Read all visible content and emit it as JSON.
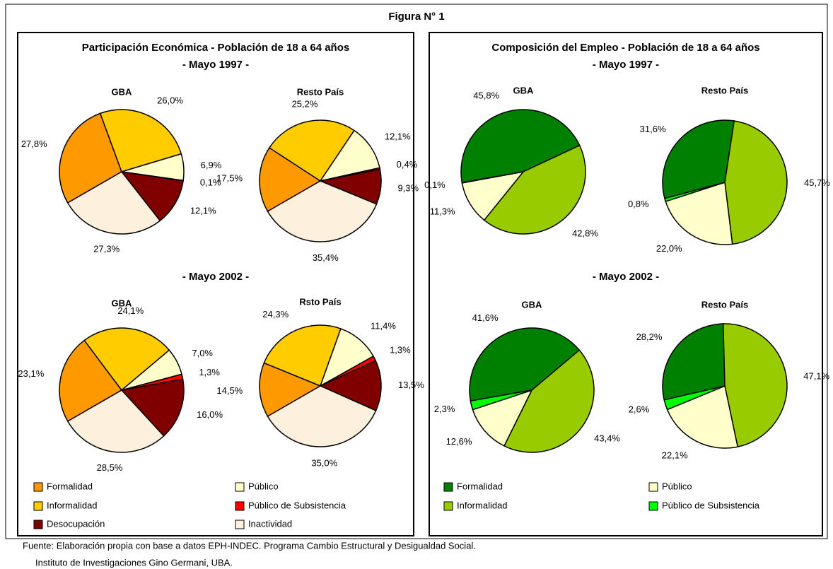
{
  "title": "Figura N° 1",
  "panels": [
    {
      "title": "Participación Económica - Población de 18 a 64 años",
      "periods": [
        "- Mayo 1997 -",
        "- Mayo 2002 -"
      ]
    },
    {
      "title": "Composición del Empleo - Población de 18 a 64 años",
      "periods": [
        "- Mayo 1997 -",
        "- Mayo 2002 -"
      ]
    }
  ],
  "chart_data": [
    {
      "type": "pie",
      "title": "GBA",
      "categories": [
        "Formalidad",
        "Informalidad",
        "Público",
        "Público de Subsistencia",
        "Desocupación",
        "Inactividad"
      ],
      "values": [
        27.8,
        26.0,
        6.9,
        0.1,
        12.1,
        27.3
      ],
      "value_labels": [
        "27,8%",
        "26,0%",
        "6,9%",
        "0,1%",
        "12,1%",
        "27,3%"
      ],
      "colors": [
        "#ff9900",
        "#ffcc00",
        "#ffffcc",
        "#ff0000",
        "#800000",
        "#fdf0dc"
      ]
    },
    {
      "type": "pie",
      "title": "Resto País",
      "categories": [
        "Formalidad",
        "Informalidad",
        "Público",
        "Público de Subsistencia",
        "Desocupación",
        "Inactividad"
      ],
      "values": [
        17.5,
        25.2,
        12.1,
        0.4,
        9.3,
        35.4
      ],
      "value_labels": [
        "17,5%",
        "25,2%",
        "12,1%",
        "0,4%",
        "9,3%",
        "35,4%"
      ],
      "colors": [
        "#ff9900",
        "#ffcc00",
        "#ffffcc",
        "#ff0000",
        "#800000",
        "#fdf0dc"
      ]
    },
    {
      "type": "pie",
      "title": "GBA",
      "categories": [
        "Formalidad",
        "Informalidad",
        "Público",
        "Público de Subsistencia",
        "Desocupación",
        "Inactividad"
      ],
      "values": [
        23.1,
        24.1,
        7.0,
        1.3,
        16.0,
        28.5
      ],
      "value_labels": [
        "23,1%",
        "24,1%",
        "7,0%",
        "1,3%",
        "16,0%",
        "28,5%"
      ],
      "colors": [
        "#ff9900",
        "#ffcc00",
        "#ffffcc",
        "#ff0000",
        "#800000",
        "#fdf0dc"
      ]
    },
    {
      "type": "pie",
      "title": "Rsto País",
      "categories": [
        "Formalidad",
        "Informalidad",
        "Público",
        "Público de Subsistencia",
        "Desocupación",
        "Inactividad"
      ],
      "values": [
        14.5,
        24.3,
        11.4,
        1.3,
        13.5,
        35.0
      ],
      "value_labels": [
        "14,5%",
        "24,3%",
        "11,4%",
        "1,3%",
        "13,5%",
        "35,0%"
      ],
      "colors": [
        "#ff9900",
        "#ffcc00",
        "#ffffcc",
        "#ff0000",
        "#800000",
        "#fdf0dc"
      ]
    },
    {
      "type": "pie",
      "title": "GBA",
      "categories": [
        "Formalidad",
        "Informalidad",
        "Público",
        "Público de Subsistencia"
      ],
      "values": [
        45.8,
        42.8,
        11.3,
        0.1
      ],
      "value_labels": [
        "45,8%",
        "42,8%",
        "11,3%",
        "0,1%"
      ],
      "colors": [
        "#008000",
        "#99cc00",
        "#ffffcc",
        "#00ff00"
      ]
    },
    {
      "type": "pie",
      "title": "Resto País",
      "categories": [
        "Formalidad",
        "Informalidad",
        "Público",
        "Público de Subsistencia"
      ],
      "values": [
        31.6,
        45.7,
        22.0,
        0.8
      ],
      "value_labels": [
        "31,6%",
        "45,7%",
        "22,0%",
        "0,8%"
      ],
      "colors": [
        "#008000",
        "#99cc00",
        "#ffffcc",
        "#00ff00"
      ]
    },
    {
      "type": "pie",
      "title": "GBA",
      "categories": [
        "Formalidad",
        "Informalidad",
        "Público",
        "Público de Subsistencia"
      ],
      "values": [
        41.6,
        43.4,
        12.6,
        2.3
      ],
      "value_labels": [
        "41,6%",
        "43,4%",
        "12,6%",
        "2,3%"
      ],
      "colors": [
        "#008000",
        "#99cc00",
        "#ffffcc",
        "#00ff00"
      ]
    },
    {
      "type": "pie",
      "title": "Resto País",
      "categories": [
        "Formalidad",
        "Informalidad",
        "Público",
        "Público de Subsistencia"
      ],
      "values": [
        28.2,
        47.1,
        22.1,
        2.6
      ],
      "value_labels": [
        "28,2%",
        "47,1%",
        "22,1%",
        "2,6%"
      ],
      "colors": [
        "#008000",
        "#99cc00",
        "#ffffcc",
        "#00ff00"
      ]
    }
  ],
  "source": [
    "Fuente: Elaboración propia con base a datos EPH-INDEC. Programa Cambio Estructural y Desigualdad Social.",
    "Instituto de Investigaciones Gino Germani, UBA."
  ]
}
